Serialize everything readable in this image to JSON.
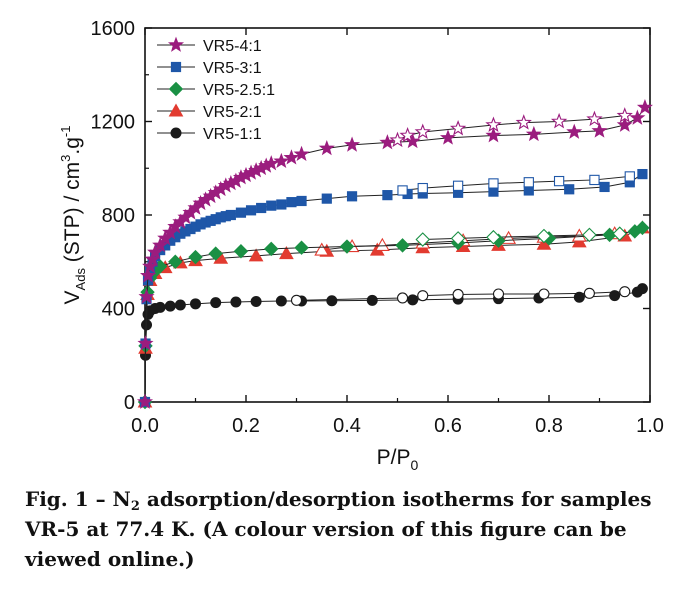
{
  "chart_data": {
    "type": "scatter",
    "xlabel": {
      "main": "P/P",
      "sub": "0"
    },
    "ylabel": {
      "main": "V",
      "sub": "Ads",
      "rest": " (STP) / cm",
      "sup1": "3",
      "mid": ".g",
      "sup2": "-1"
    },
    "xlim": [
      0,
      1.0
    ],
    "ylim": [
      0,
      1600
    ],
    "xticks": [
      0.0,
      0.2,
      0.4,
      0.6,
      0.8,
      1.0
    ],
    "xtick_labels": [
      "0.0",
      "0.2",
      "0.4",
      "0.6",
      "0.8",
      "1.0"
    ],
    "yticks": [
      0,
      400,
      800,
      1200,
      1600
    ],
    "ytick_labels": [
      "0",
      "400",
      "800",
      "1200",
      "1600"
    ],
    "legend_position": "top-left",
    "series": [
      {
        "name": "VR5-4:1",
        "color": "#9b1c7e",
        "marker": "star",
        "adsorption": [
          [
            0.0,
            0
          ],
          [
            0.001,
            250
          ],
          [
            0.003,
            450
          ],
          [
            0.006,
            540
          ],
          [
            0.01,
            580
          ],
          [
            0.015,
            610
          ],
          [
            0.02,
            640
          ],
          [
            0.03,
            670
          ],
          [
            0.04,
            700
          ],
          [
            0.05,
            725
          ],
          [
            0.06,
            750
          ],
          [
            0.07,
            770
          ],
          [
            0.08,
            790
          ],
          [
            0.09,
            810
          ],
          [
            0.1,
            830
          ],
          [
            0.11,
            850
          ],
          [
            0.12,
            865
          ],
          [
            0.13,
            880
          ],
          [
            0.14,
            895
          ],
          [
            0.15,
            910
          ],
          [
            0.16,
            925
          ],
          [
            0.17,
            935
          ],
          [
            0.18,
            945
          ],
          [
            0.19,
            960
          ],
          [
            0.2,
            970
          ],
          [
            0.21,
            980
          ],
          [
            0.22,
            990
          ],
          [
            0.23,
            1000
          ],
          [
            0.24,
            1010
          ],
          [
            0.25,
            1020
          ],
          [
            0.27,
            1030
          ],
          [
            0.29,
            1045
          ],
          [
            0.31,
            1060
          ],
          [
            0.36,
            1085
          ],
          [
            0.41,
            1100
          ],
          [
            0.48,
            1110
          ],
          [
            0.53,
            1115
          ],
          [
            0.6,
            1130
          ],
          [
            0.69,
            1140
          ],
          [
            0.77,
            1145
          ],
          [
            0.85,
            1155
          ],
          [
            0.9,
            1160
          ],
          [
            0.95,
            1185
          ],
          [
            0.975,
            1215
          ],
          [
            0.99,
            1260
          ]
        ],
        "desorption": [
          [
            0.5,
            1120
          ],
          [
            0.52,
            1140
          ],
          [
            0.55,
            1155
          ],
          [
            0.62,
            1170
          ],
          [
            0.69,
            1185
          ],
          [
            0.75,
            1195
          ],
          [
            0.82,
            1200
          ],
          [
            0.89,
            1210
          ],
          [
            0.95,
            1225
          ]
        ]
      },
      {
        "name": "VR5-3:1",
        "color": "#1f57a8",
        "marker": "square",
        "adsorption": [
          [
            0.0,
            0
          ],
          [
            0.001,
            250
          ],
          [
            0.003,
            440
          ],
          [
            0.006,
            520
          ],
          [
            0.01,
            570
          ],
          [
            0.015,
            600
          ],
          [
            0.02,
            625
          ],
          [
            0.03,
            650
          ],
          [
            0.04,
            670
          ],
          [
            0.05,
            690
          ],
          [
            0.06,
            705
          ],
          [
            0.07,
            720
          ],
          [
            0.08,
            730
          ],
          [
            0.09,
            740
          ],
          [
            0.1,
            750
          ],
          [
            0.11,
            760
          ],
          [
            0.12,
            768
          ],
          [
            0.13,
            775
          ],
          [
            0.14,
            782
          ],
          [
            0.15,
            790
          ],
          [
            0.16,
            795
          ],
          [
            0.17,
            800
          ],
          [
            0.19,
            810
          ],
          [
            0.21,
            820
          ],
          [
            0.23,
            830
          ],
          [
            0.25,
            840
          ],
          [
            0.27,
            845
          ],
          [
            0.29,
            855
          ],
          [
            0.31,
            860
          ],
          [
            0.36,
            870
          ],
          [
            0.41,
            880
          ],
          [
            0.48,
            885
          ],
          [
            0.52,
            890
          ],
          [
            0.55,
            892
          ],
          [
            0.62,
            895
          ],
          [
            0.69,
            900
          ],
          [
            0.76,
            905
          ],
          [
            0.84,
            910
          ],
          [
            0.91,
            920
          ],
          [
            0.96,
            940
          ],
          [
            0.985,
            975
          ]
        ],
        "desorption": [
          [
            0.51,
            905
          ],
          [
            0.55,
            915
          ],
          [
            0.62,
            925
          ],
          [
            0.69,
            935
          ],
          [
            0.76,
            940
          ],
          [
            0.82,
            945
          ],
          [
            0.89,
            950
          ],
          [
            0.96,
            965
          ]
        ]
      },
      {
        "name": "VR5-2.5:1",
        "color": "#1a9044",
        "marker": "diamond",
        "adsorption": [
          [
            0.0,
            0
          ],
          [
            0.001,
            240
          ],
          [
            0.005,
            470
          ],
          [
            0.01,
            530
          ],
          [
            0.02,
            560
          ],
          [
            0.03,
            580
          ],
          [
            0.06,
            600
          ],
          [
            0.1,
            620
          ],
          [
            0.14,
            635
          ],
          [
            0.19,
            645
          ],
          [
            0.25,
            655
          ],
          [
            0.31,
            660
          ],
          [
            0.4,
            665
          ],
          [
            0.51,
            670
          ],
          [
            0.62,
            680
          ],
          [
            0.7,
            690
          ],
          [
            0.8,
            700
          ],
          [
            0.92,
            715
          ],
          [
            0.97,
            730
          ],
          [
            0.985,
            745
          ]
        ],
        "desorption": [
          [
            0.55,
            695
          ],
          [
            0.62,
            700
          ],
          [
            0.69,
            705
          ],
          [
            0.79,
            710
          ],
          [
            0.88,
            715
          ],
          [
            0.94,
            720
          ]
        ]
      },
      {
        "name": "VR5-2:1",
        "color": "#e23b30",
        "marker": "triangle",
        "adsorption": [
          [
            0.0,
            0
          ],
          [
            0.001,
            230
          ],
          [
            0.005,
            460
          ],
          [
            0.01,
            520
          ],
          [
            0.02,
            550
          ],
          [
            0.04,
            575
          ],
          [
            0.07,
            595
          ],
          [
            0.1,
            605
          ],
          [
            0.15,
            615
          ],
          [
            0.22,
            625
          ],
          [
            0.28,
            635
          ],
          [
            0.36,
            645
          ],
          [
            0.46,
            650
          ],
          [
            0.55,
            660
          ],
          [
            0.63,
            665
          ],
          [
            0.7,
            670
          ],
          [
            0.79,
            675
          ],
          [
            0.86,
            685
          ],
          [
            0.95,
            710
          ],
          [
            0.985,
            745
          ]
        ],
        "desorption": [
          [
            0.35,
            650
          ],
          [
            0.41,
            665
          ],
          [
            0.47,
            670
          ],
          [
            0.55,
            680
          ],
          [
            0.63,
            690
          ],
          [
            0.72,
            700
          ],
          [
            0.79,
            705
          ],
          [
            0.86,
            710
          ],
          [
            0.93,
            720
          ]
        ]
      },
      {
        "name": "VR5-1:1",
        "color": "#1a1a1a",
        "marker": "circle",
        "adsorption": [
          [
            0.0,
            0
          ],
          [
            0.001,
            200
          ],
          [
            0.003,
            330
          ],
          [
            0.006,
            375
          ],
          [
            0.01,
            390
          ],
          [
            0.02,
            400
          ],
          [
            0.03,
            405
          ],
          [
            0.05,
            410
          ],
          [
            0.07,
            415
          ],
          [
            0.1,
            420
          ],
          [
            0.14,
            425
          ],
          [
            0.18,
            428
          ],
          [
            0.22,
            430
          ],
          [
            0.27,
            432
          ],
          [
            0.31,
            432
          ],
          [
            0.37,
            433
          ],
          [
            0.45,
            435
          ],
          [
            0.53,
            437
          ],
          [
            0.62,
            440
          ],
          [
            0.7,
            442
          ],
          [
            0.78,
            445
          ],
          [
            0.86,
            448
          ],
          [
            0.93,
            455
          ],
          [
            0.975,
            470
          ],
          [
            0.985,
            485
          ]
        ],
        "desorption": [
          [
            0.3,
            435
          ],
          [
            0.51,
            445
          ],
          [
            0.55,
            455
          ],
          [
            0.62,
            460
          ],
          [
            0.7,
            462
          ],
          [
            0.79,
            462
          ],
          [
            0.88,
            465
          ],
          [
            0.95,
            472
          ]
        ]
      }
    ]
  },
  "caption": {
    "part1": "Fig. 1 – N",
    "sub": "2",
    "part2": " adsorption/desorption isotherms for samples VR-5 at 77.4 K. (A colour version of this figure can be viewed online.)"
  }
}
